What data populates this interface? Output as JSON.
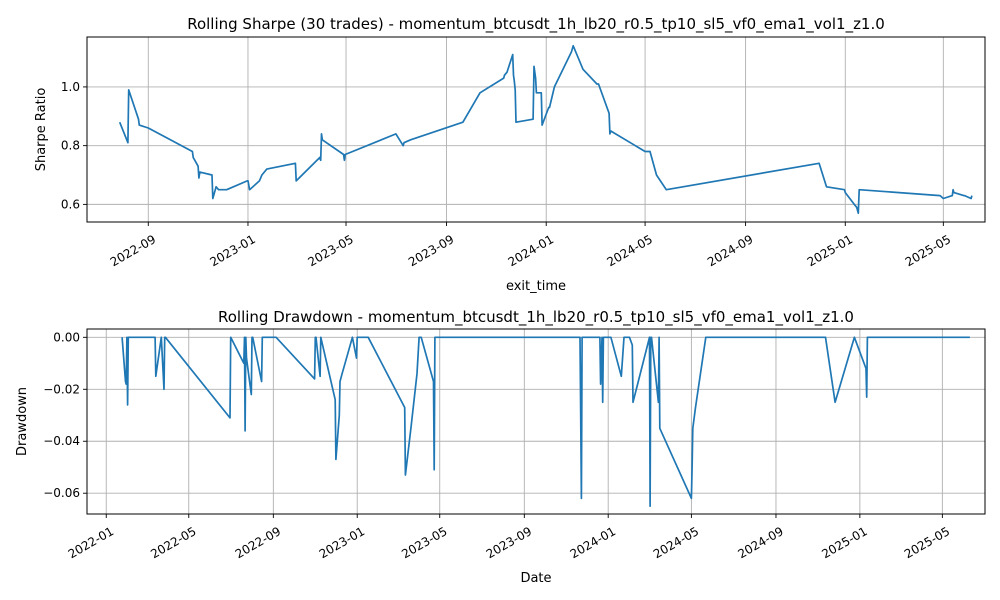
{
  "chart_data": [
    {
      "type": "line",
      "title": "Rolling Sharpe (30 trades) - momentum_btcusdt_1h_lb20_r0.5_tp10_sl5_vf0_ema1_vol1_z1.0",
      "xlabel": "exit_time",
      "ylabel": "Sharpe Ratio",
      "x_is_date": true,
      "xlim": [
        "2022-06-18",
        "2025-06-21"
      ],
      "ylim": [
        0.54,
        1.17
      ],
      "xticks": [
        "2022-09-01",
        "2023-01-01",
        "2023-05-01",
        "2023-09-01",
        "2024-01-01",
        "2024-05-01",
        "2024-09-01",
        "2025-01-01",
        "2025-05-01"
      ],
      "xtick_labels": [
        "2022-09",
        "2023-01",
        "2023-05",
        "2023-09",
        "2024-01",
        "2024-05",
        "2024-09",
        "2025-01",
        "2025-05"
      ],
      "yticks": [
        0.6,
        0.8,
        1.0
      ],
      "ytick_labels": [
        "0.6",
        "0.8",
        "1.0"
      ],
      "grid": true,
      "color": "#1f77b4",
      "series": [
        {
          "x": [
            "2022-07-28",
            "2022-08-07",
            "2022-08-08",
            "2022-08-20",
            "2022-08-21",
            "2022-09-01",
            "2022-10-25",
            "2022-10-26",
            "2022-11-01",
            "2022-11-02",
            "2022-11-03",
            "2022-11-18",
            "2022-11-19",
            "2022-11-22",
            "2022-11-23",
            "2022-11-26",
            "2022-12-06",
            "2022-12-31",
            "2023-01-01",
            "2023-01-03",
            "2023-01-15",
            "2023-01-18",
            "2023-01-24",
            "2023-02-28",
            "2023-03-01",
            "2023-03-30",
            "2023-03-31",
            "2023-04-01",
            "2023-04-02",
            "2023-04-28",
            "2023-04-29",
            "2023-04-30",
            "2023-07-01",
            "2023-07-10",
            "2023-07-11",
            "2023-07-19",
            "2023-09-21",
            "2023-10-12",
            "2023-11-10",
            "2023-11-11",
            "2023-11-14",
            "2023-11-21",
            "2023-11-22",
            "2023-11-23",
            "2023-11-24",
            "2023-11-25",
            "2023-12-16",
            "2023-12-17",
            "2023-12-19",
            "2023-12-20",
            "2023-12-21",
            "2023-12-26",
            "2023-12-27",
            "2024-01-04",
            "2024-01-05",
            "2024-01-11",
            "2024-02-01",
            "2024-02-03",
            "2024-02-15",
            "2024-03-03",
            "2024-03-04",
            "2024-03-05",
            "2024-03-18",
            "2024-03-19",
            "2024-03-20",
            "2024-05-01",
            "2024-05-07",
            "2024-05-15",
            "2024-05-27",
            "2024-11-30",
            "2024-12-09",
            "2024-12-31",
            "2025-01-01",
            "2025-01-12",
            "2025-01-15",
            "2025-01-16",
            "2025-01-17",
            "2025-01-18",
            "2025-04-27",
            "2025-05-01",
            "2025-05-12",
            "2025-05-13",
            "2025-05-14",
            "2025-05-26",
            "2025-05-27",
            "2025-06-04",
            "2025-06-05"
          ],
          "y": [
            0.88,
            0.81,
            0.99,
            0.89,
            0.87,
            0.86,
            0.78,
            0.76,
            0.73,
            0.69,
            0.71,
            0.7,
            0.62,
            0.65,
            0.66,
            0.65,
            0.65,
            0.68,
            0.68,
            0.65,
            0.68,
            0.7,
            0.72,
            0.74,
            0.68,
            0.76,
            0.75,
            0.84,
            0.82,
            0.77,
            0.75,
            0.77,
            0.84,
            0.8,
            0.81,
            0.82,
            0.88,
            0.98,
            1.03,
            1.04,
            1.05,
            1.11,
            1.04,
            1.02,
            0.99,
            0.88,
            0.89,
            1.07,
            1.03,
            0.98,
            0.98,
            0.98,
            0.87,
            0.93,
            0.93,
            1.0,
            1.12,
            1.14,
            1.06,
            1.01,
            1.01,
            1.01,
            0.91,
            0.84,
            0.85,
            0.78,
            0.78,
            0.7,
            0.65,
            0.74,
            0.66,
            0.65,
            0.64,
            0.6,
            0.59,
            0.58,
            0.57,
            0.65,
            0.63,
            0.62,
            0.63,
            0.65,
            0.64,
            0.63,
            0.63,
            0.62,
            0.63
          ]
        }
      ]
    },
    {
      "type": "line",
      "title": "Rolling Drawdown - momentum_btcusdt_1h_lb20_r0.5_tp10_sl5_vf0_ema1_vol1_z1.0",
      "xlabel": "Date",
      "ylabel": "Drawdown",
      "x_is_date": true,
      "xlim": [
        "2021-12-04",
        "2025-07-02"
      ],
      "ylim": [
        -0.068,
        0.0032
      ],
      "xticks": [
        "2022-01-01",
        "2022-05-01",
        "2022-09-01",
        "2023-01-01",
        "2023-05-01",
        "2023-09-01",
        "2024-01-01",
        "2024-05-01",
        "2024-09-01",
        "2025-01-01",
        "2025-05-01"
      ],
      "xtick_labels": [
        "2022-01",
        "2022-05",
        "2022-09",
        "2023-01",
        "2023-05",
        "2023-09",
        "2024-01",
        "2024-05",
        "2024-09",
        "2025-01",
        "2025-05"
      ],
      "yticks": [
        0.0,
        -0.02,
        -0.04,
        -0.06
      ],
      "ytick_labels": [
        "0.00",
        "−0.02",
        "−0.04",
        "−0.06"
      ],
      "grid": true,
      "color": "#1f77b4",
      "series": [
        {
          "x": [
            "2022-01-24",
            "2022-01-29",
            "2022-01-30",
            "2022-01-31",
            "2022-02-01",
            "2022-02-02",
            "2022-02-03",
            "2022-03-13",
            "2022-03-14",
            "2022-03-22",
            "2022-03-26",
            "2022-03-27",
            "2022-03-28",
            "2022-06-30",
            "2022-07-01",
            "2022-07-20",
            "2022-07-21",
            "2022-07-22",
            "2022-07-23",
            "2022-07-24",
            "2022-07-31",
            "2022-08-01",
            "2022-08-02",
            "2022-08-15",
            "2022-08-16",
            "2022-09-05",
            "2022-10-31",
            "2022-11-01",
            "2022-11-02",
            "2022-11-08",
            "2022-11-09",
            "2022-11-30",
            "2022-12-01",
            "2022-12-06",
            "2022-12-07",
            "2022-12-10",
            "2022-12-25",
            "2022-12-31",
            "2023-01-01",
            "2023-01-17",
            "2023-03-11",
            "2023-03-12",
            "2023-03-20",
            "2023-03-29",
            "2023-04-01",
            "2023-04-04",
            "2023-04-22",
            "2023-04-23",
            "2023-04-24",
            "2023-04-25",
            "2023-11-21",
            "2023-11-22",
            "2023-11-23",
            "2023-11-24",
            "2023-11-25",
            "2023-12-20",
            "2023-12-21",
            "2023-12-23",
            "2023-12-24",
            "2023-12-25",
            "2023-12-26",
            "2023-12-27",
            "2024-01-04",
            "2024-01-05",
            "2024-01-20",
            "2024-01-24",
            "2024-02-01",
            "2024-02-05",
            "2024-02-06",
            "2024-03-01",
            "2024-03-02",
            "2024-03-03",
            "2024-03-04",
            "2024-03-14",
            "2024-03-15",
            "2024-03-16",
            "2024-05-01",
            "2024-05-02",
            "2024-05-03",
            "2024-05-07",
            "2024-05-22",
            "2024-05-23",
            "2024-11-12",
            "2024-11-26",
            "2024-12-24",
            "2025-01-10",
            "2025-01-11",
            "2025-01-12",
            "2025-06-10"
          ],
          "y": [
            0.0,
            -0.017,
            -0.018,
            0.0,
            -0.026,
            0.0,
            0.0,
            0.0,
            -0.015,
            0.0,
            -0.02,
            0.0,
            0.0,
            -0.031,
            0.0,
            -0.01,
            0.0,
            -0.036,
            0.0,
            -0.008,
            -0.022,
            0.0,
            0.0,
            -0.017,
            0.0,
            0.0,
            -0.016,
            0.0,
            0.0,
            -0.015,
            0.0,
            -0.024,
            -0.047,
            -0.03,
            -0.017,
            -0.014,
            0.0,
            -0.008,
            0.0,
            0.0,
            -0.027,
            -0.053,
            -0.035,
            -0.014,
            0.0,
            0.0,
            -0.017,
            -0.051,
            0.0,
            0.0,
            0.0,
            -0.03,
            -0.062,
            0.0,
            0.0,
            0.0,
            -0.018,
            0.0,
            -0.025,
            0.0,
            0.0,
            0.0,
            0.0,
            0.0,
            -0.015,
            0.0,
            0.0,
            -0.003,
            -0.025,
            0.0,
            -0.065,
            0.0,
            0.0,
            -0.025,
            0.0,
            -0.035,
            -0.062,
            -0.05,
            -0.035,
            -0.027,
            0.0,
            0.0,
            0.0,
            -0.025,
            0.0,
            -0.012,
            -0.023,
            0.0,
            0.0
          ]
        }
      ]
    }
  ]
}
